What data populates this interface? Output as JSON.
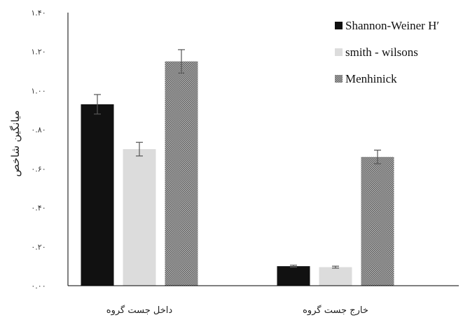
{
  "chart_data": {
    "type": "bar",
    "ylabel": "میانگین شاخص",
    "xlabel": "",
    "ylim": [
      0,
      1.4
    ],
    "y_ticks": [
      0,
      0.2,
      0.4,
      0.6,
      0.8,
      1.0,
      1.2,
      1.4
    ],
    "y_tick_labels": [
      "۰.۰۰",
      "۰.۲۰",
      "۰.۴۰",
      "۰.۶۰",
      "۰.۸۰",
      "۱.۰۰",
      "۱.۲۰",
      "۱.۴۰"
    ],
    "categories": [
      "داخل جست گروه",
      "خارج جست گروه"
    ],
    "series": [
      {
        "name": "Shannon-Weiner H′",
        "color": "#111111",
        "pattern": "solid",
        "values": [
          0.93,
          0.1
        ],
        "errors": [
          0.05,
          0.005
        ]
      },
      {
        "name": "smith - wilsons",
        "color": "#dcdcdc",
        "pattern": "solid",
        "values": [
          0.7,
          0.095
        ],
        "errors": [
          0.035,
          0.005
        ]
      },
      {
        "name": "Menhinick",
        "color": "#8f8f8f",
        "pattern": "crosshatch",
        "values": [
          1.15,
          0.66
        ],
        "errors": [
          0.06,
          0.035
        ]
      }
    ],
    "error_bars": true,
    "grid": false,
    "legend_position": "top-right"
  }
}
